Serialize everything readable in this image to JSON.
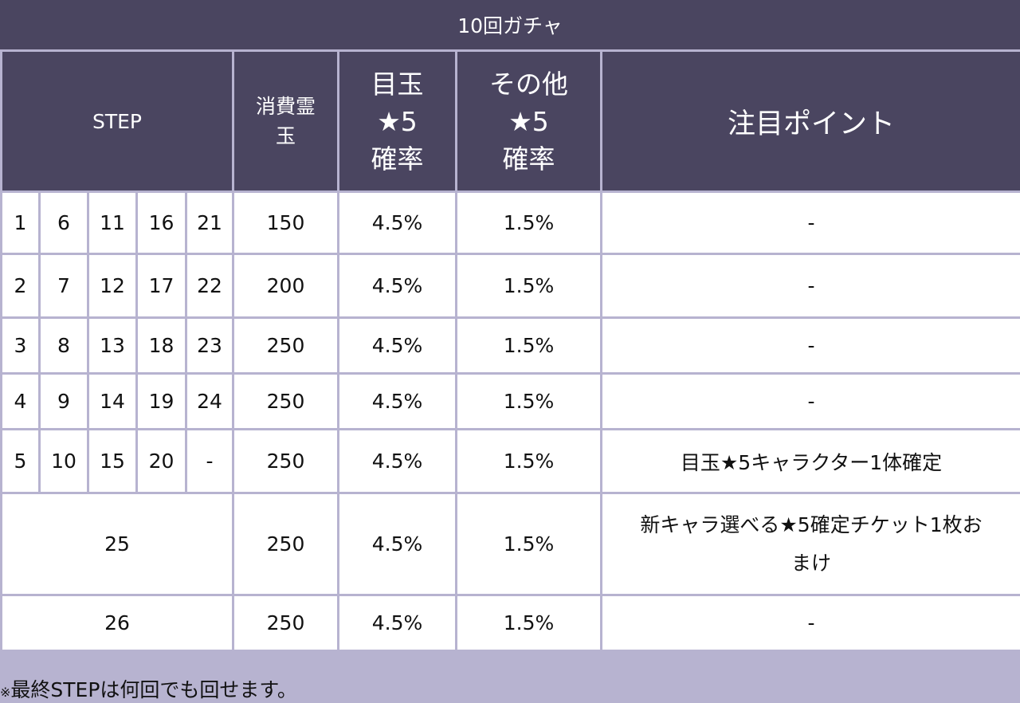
{
  "title": "10回ガチャ",
  "headers": {
    "step": "STEP",
    "cost": [
      "消費霊",
      "玉"
    ],
    "featured_rate": [
      "目玉",
      "★5",
      "確率"
    ],
    "other_rate": [
      "その他",
      "★5",
      "確率"
    ],
    "point": "注目ポイント"
  },
  "rows": [
    {
      "steps": [
        "1",
        "6",
        "11",
        "16",
        "21"
      ],
      "cost": "150",
      "cost_highlight": true,
      "featured": "4.5%",
      "other": "1.5%",
      "point": [
        "-"
      ],
      "point_highlight": false
    },
    {
      "steps": [
        "2",
        "7",
        "12",
        "17",
        "22"
      ],
      "cost": "200",
      "cost_highlight": true,
      "featured": "4.5%",
      "other": "1.5%",
      "point": [
        "-"
      ],
      "point_highlight": false
    },
    {
      "steps": [
        "3",
        "8",
        "13",
        "18",
        "23"
      ],
      "cost": "250",
      "cost_highlight": false,
      "featured": "4.5%",
      "other": "1.5%",
      "point": [
        "-"
      ],
      "point_highlight": false
    },
    {
      "steps": [
        "4",
        "9",
        "14",
        "19",
        "24"
      ],
      "cost": "250",
      "cost_highlight": false,
      "featured": "4.5%",
      "other": "1.5%",
      "point": [
        "-"
      ],
      "point_highlight": false
    },
    {
      "steps": [
        "5",
        "10",
        "15",
        "20",
        "-"
      ],
      "cost": "250",
      "cost_highlight": false,
      "featured": "4.5%",
      "other": "1.5%",
      "point": [
        "目玉★5キャラクター1体確定"
      ],
      "point_highlight": true
    },
    {
      "steps": [
        "25"
      ],
      "cost": "250",
      "cost_highlight": false,
      "featured": "4.5%",
      "other": "1.5%",
      "point": [
        "新キャラ選べる★5確定チケット1枚お",
        "まけ"
      ],
      "point_highlight": true
    },
    {
      "steps": [
        "26"
      ],
      "cost": "250",
      "cost_highlight": false,
      "featured": "4.5%",
      "other": "1.5%",
      "point": [
        "-"
      ],
      "point_highlight": false
    }
  ],
  "note": {
    "mark": "※",
    "text": "最終STEPは何回でも回せます。"
  },
  "colors": {
    "header_bg": "#4a4560",
    "border": "#b7b3d0",
    "highlight": "#e8201c"
  }
}
